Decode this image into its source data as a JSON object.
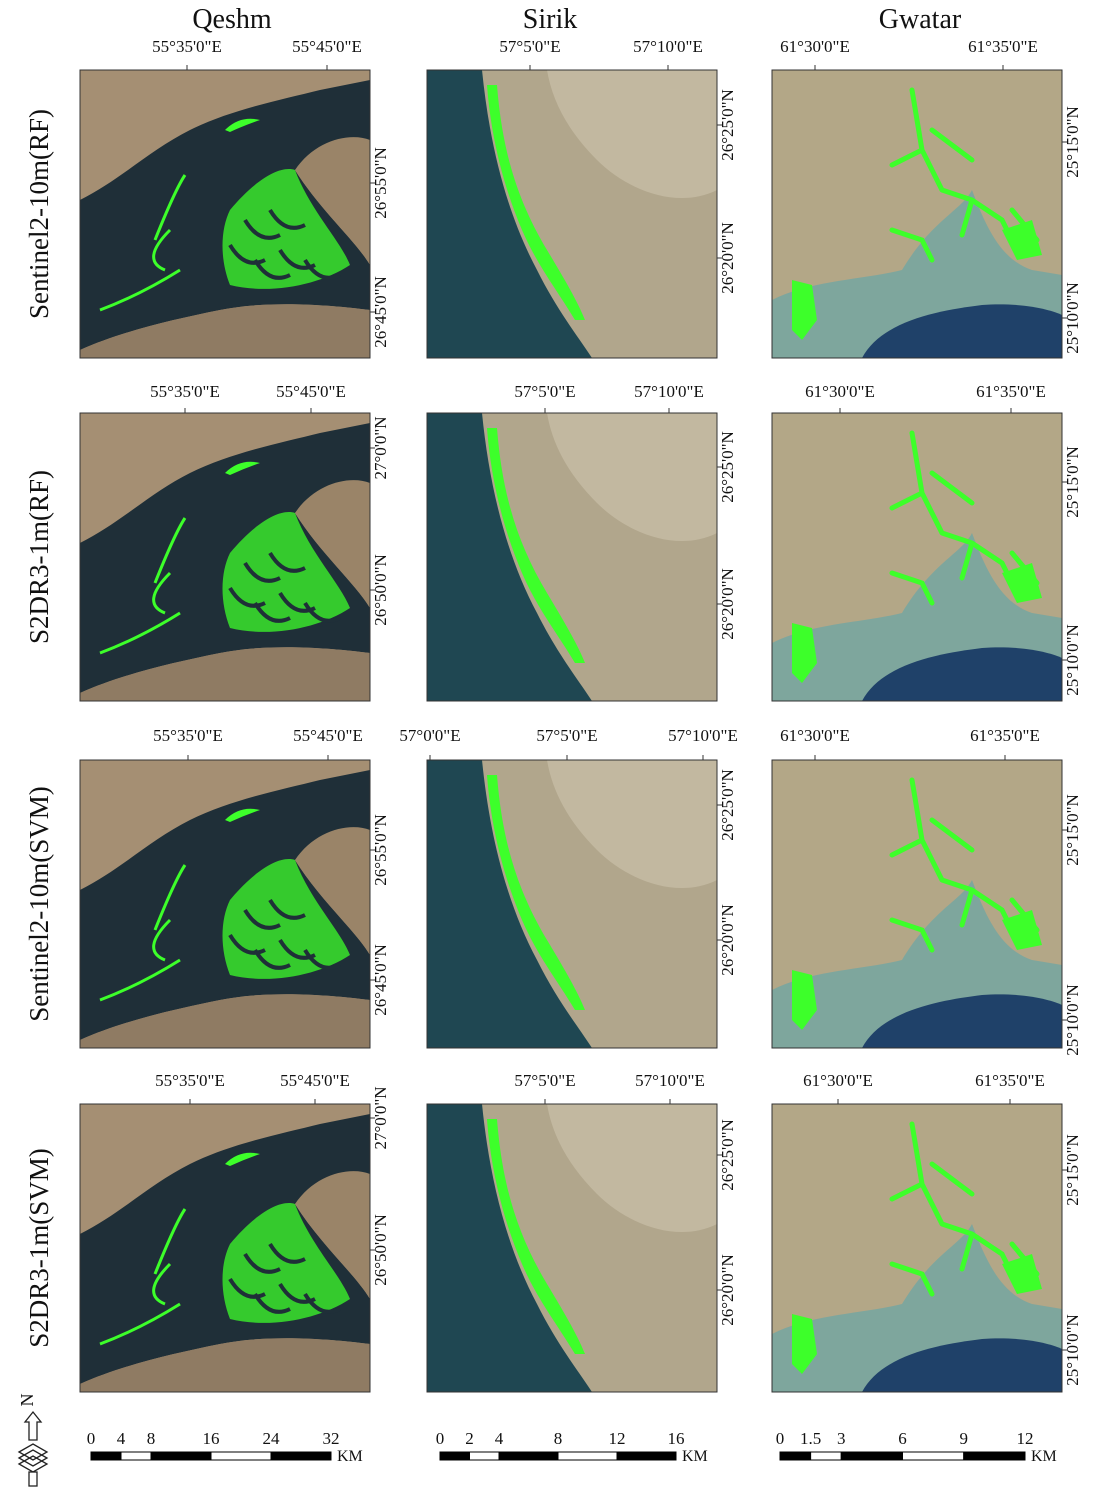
{
  "columns": [
    "Qeshm",
    "Sirik",
    "Gwatar"
  ],
  "rows": [
    {
      "label": "Sentinel2-10m(RF)",
      "panels": [
        {
          "top": [
            "55°35'0\"E",
            "55°45'0\"E"
          ],
          "right": [
            "26°55'0\"N",
            "26°45'0\"N"
          ]
        },
        {
          "top": [
            "57°5'0\"E",
            "57°10'0\"E"
          ],
          "right": [
            "26°25'0\"N",
            "26°20'0\"N"
          ]
        },
        {
          "top": [
            "61°30'0\"E",
            "61°35'0\"E"
          ],
          "right": [
            "25°15'0\"N",
            "25°10'0\"N"
          ]
        }
      ]
    },
    {
      "label": "S2DR3-1m(RF)",
      "panels": [
        {
          "top": [
            "55°35'0\"E",
            "55°45'0\"E"
          ],
          "right": [
            "27°0'0\"N",
            "26°50'0\"N"
          ]
        },
        {
          "top": [
            "57°5'0\"E",
            "57°10'0\"E"
          ],
          "right": [
            "26°25'0\"N",
            "26°20'0\"N"
          ]
        },
        {
          "top": [
            "61°30'0\"E",
            "61°35'0\"E"
          ],
          "right": [
            "25°15'0\"N",
            "25°10'0\"N"
          ]
        }
      ]
    },
    {
      "label": "Sentinel2-10m(SVM)",
      "panels": [
        {
          "top": [
            "55°35'0\"E",
            "55°45'0\"E"
          ],
          "right": [
            "26°55'0\"N",
            "26°45'0\"N"
          ]
        },
        {
          "top": [
            "57°0'0\"E",
            "57°5'0\"E",
            "57°10'0\"E"
          ],
          "right": [
            "26°25'0\"N",
            "26°20'0\"N"
          ]
        },
        {
          "top": [
            "61°30'0\"E",
            "61°35'0\"E"
          ],
          "right": [
            "25°15'0\"N",
            "25°10'0\"N"
          ]
        }
      ]
    },
    {
      "label": "S2DR3-1m(SVM)",
      "panels": [
        {
          "top": [
            "55°35'0\"E",
            "55°45'0\"E"
          ],
          "right": [
            "27°0'0\"N",
            "26°50'0\"N"
          ]
        },
        {
          "top": [
            "57°5'0\"E",
            "57°10'0\"E"
          ],
          "right": [
            "26°25'0\"N",
            "26°20'0\"N"
          ]
        },
        {
          "top": [
            "61°30'0\"E",
            "61°35'0\"E"
          ],
          "right": [
            "25°15'0\"N",
            "25°10'0\"N"
          ]
        }
      ]
    }
  ],
  "scale_bars": [
    {
      "ticks": [
        0,
        4,
        8,
        16,
        24,
        32
      ],
      "unit": "KM"
    },
    {
      "ticks": [
        0,
        2,
        4,
        8,
        12,
        16
      ],
      "unit": "KM"
    },
    {
      "ticks": [
        0,
        1.5,
        3,
        6,
        9,
        12
      ],
      "unit": "KM"
    }
  ],
  "north": "N"
}
